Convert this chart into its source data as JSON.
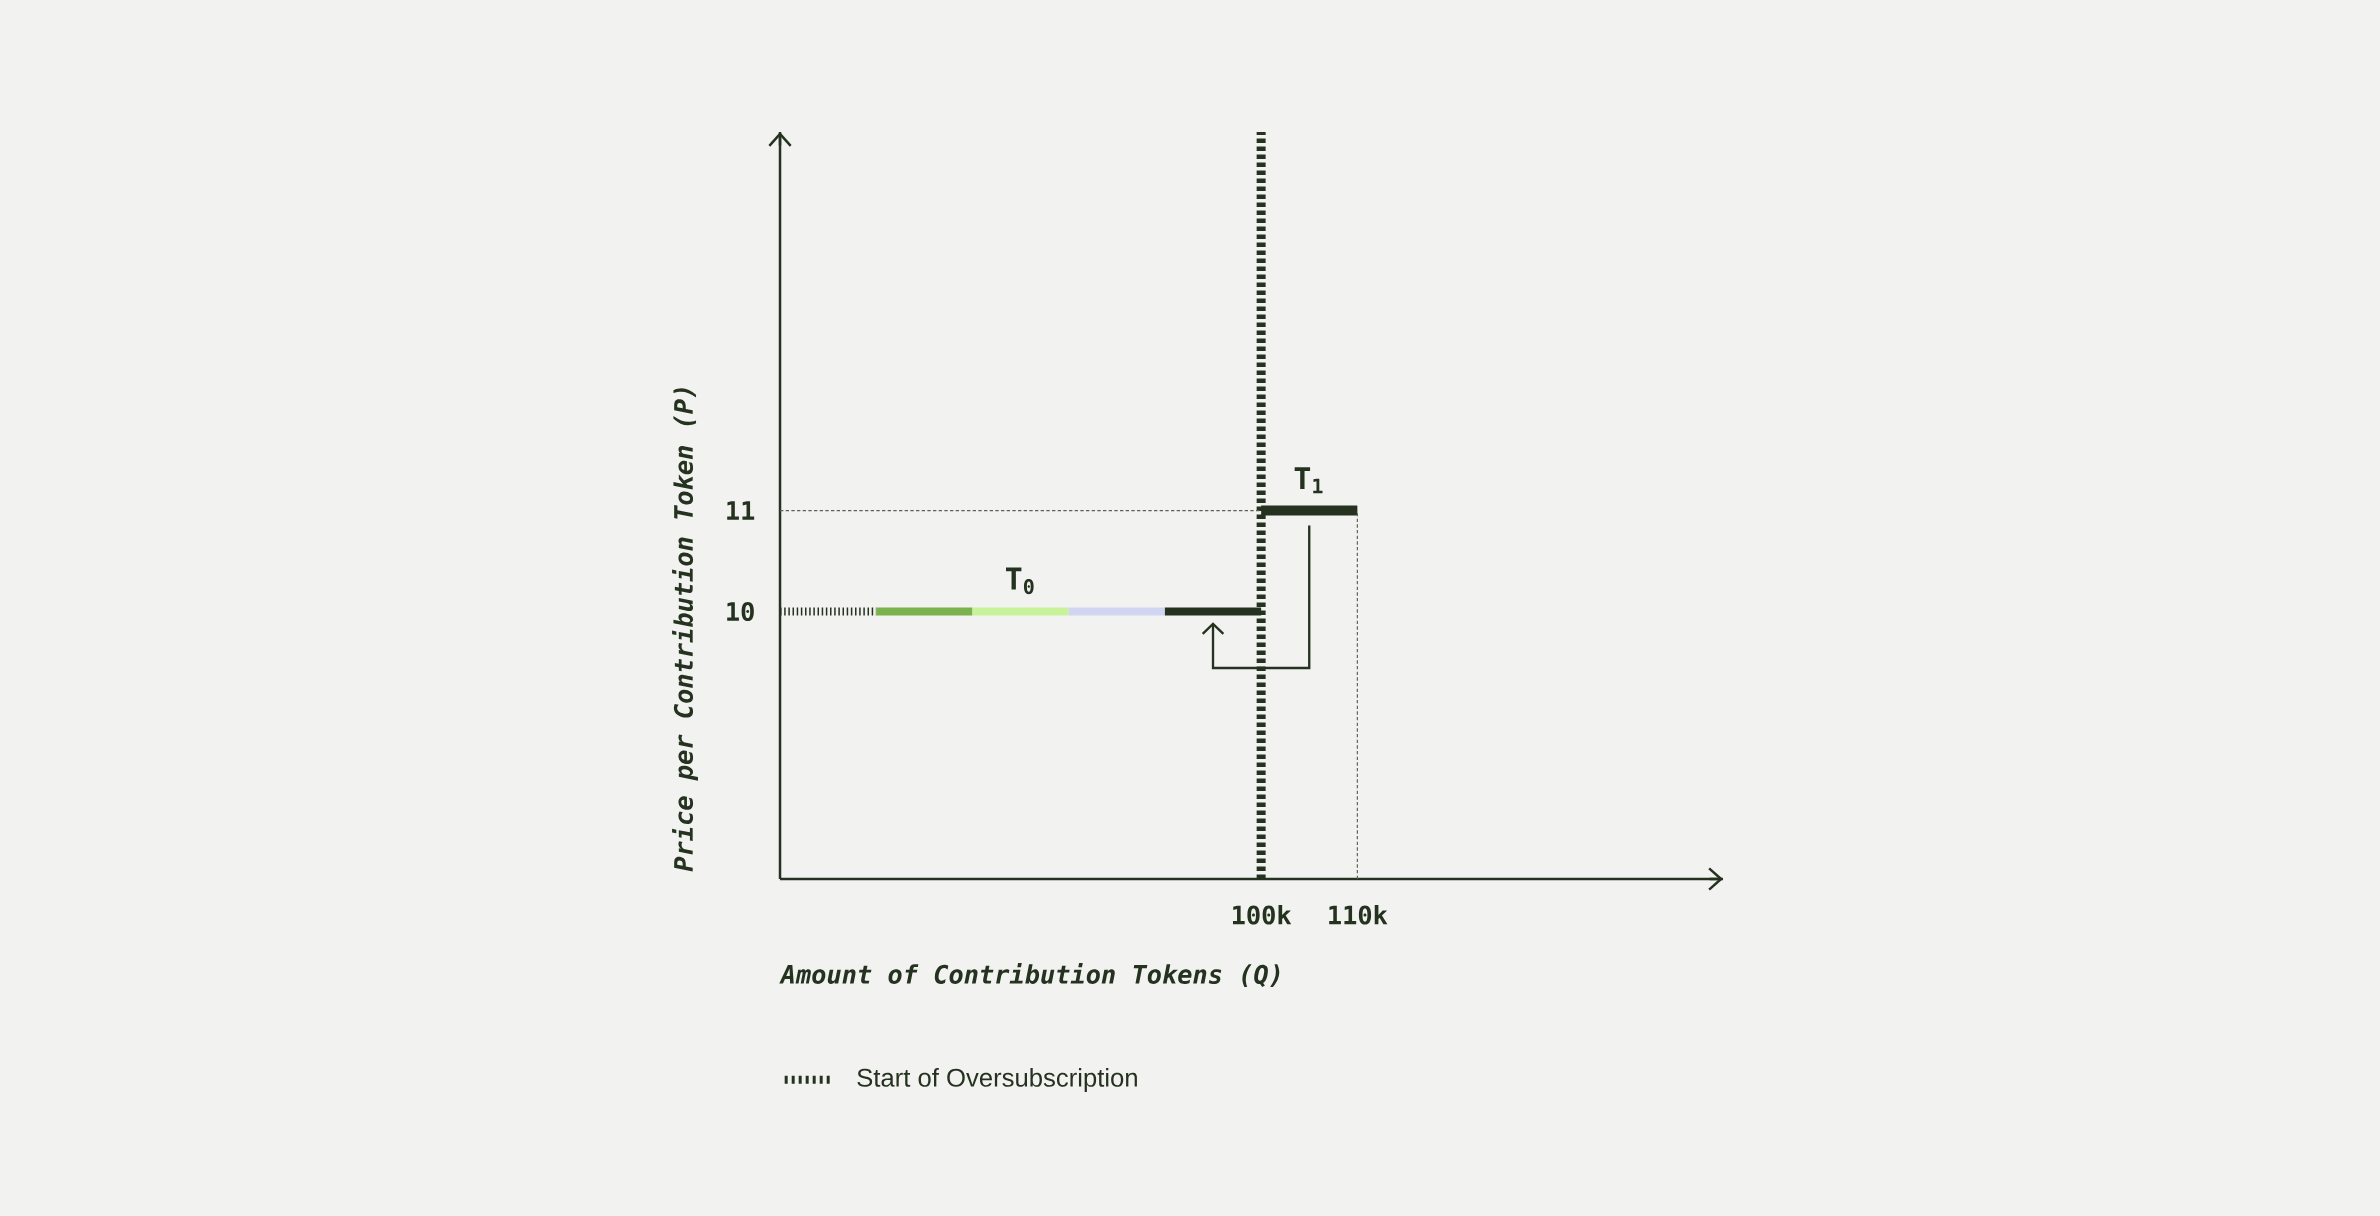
{
  "chart_data": {
    "type": "line",
    "xlabel": "Amount of Contribution Tokens (Q)",
    "ylabel": "Price per Contribution Token (P)",
    "xlim": [
      50000,
      148000
    ],
    "ylim": [
      7.35,
      14.75
    ],
    "xticks": [
      {
        "value": 100000,
        "label": "100k"
      },
      {
        "value": 110000,
        "label": "110k"
      }
    ],
    "yticks": [
      10,
      11
    ],
    "series": [
      {
        "x": [
          50000,
          60000
        ],
        "values": [
          10,
          10
        ],
        "color": "#253220",
        "line_style": "dashed"
      },
      {
        "x": [
          60000,
          70000
        ],
        "values": [
          10,
          10
        ],
        "color": "#7ab24e"
      },
      {
        "x": [
          70000,
          80000
        ],
        "values": [
          10,
          10
        ],
        "color": "#c8f39b"
      },
      {
        "x": [
          80000,
          90000
        ],
        "values": [
          10,
          10
        ],
        "color": "#d1d5f1"
      },
      {
        "x": [
          90000,
          100000
        ],
        "values": [
          10,
          10
        ],
        "color": "#253220"
      },
      {
        "x": [
          100000,
          110000
        ],
        "values": [
          11,
          11
        ],
        "color": "#253220"
      },
      {
        "x": [
          50000,
          100000
        ],
        "values": [
          11,
          11
        ],
        "color": "#5a6057",
        "line_style": "dashed"
      },
      {
        "x": [
          110000,
          110000
        ],
        "values": [
          7.35,
          11
        ],
        "color": "#5a6057",
        "line_style": "dashed"
      }
    ],
    "ref_lines": [
      {
        "axis": "x",
        "value": 100000,
        "label": "Start of Oversubscription",
        "color": "#253220",
        "line_style": "dashed"
      }
    ],
    "annotations": [
      {
        "text": "T$_{0}$",
        "x": 75000,
        "y": 10
      },
      {
        "text": "T$_{1}$",
        "x": 105000,
        "y": 11
      }
    ],
    "legend": "bottom left"
  }
}
